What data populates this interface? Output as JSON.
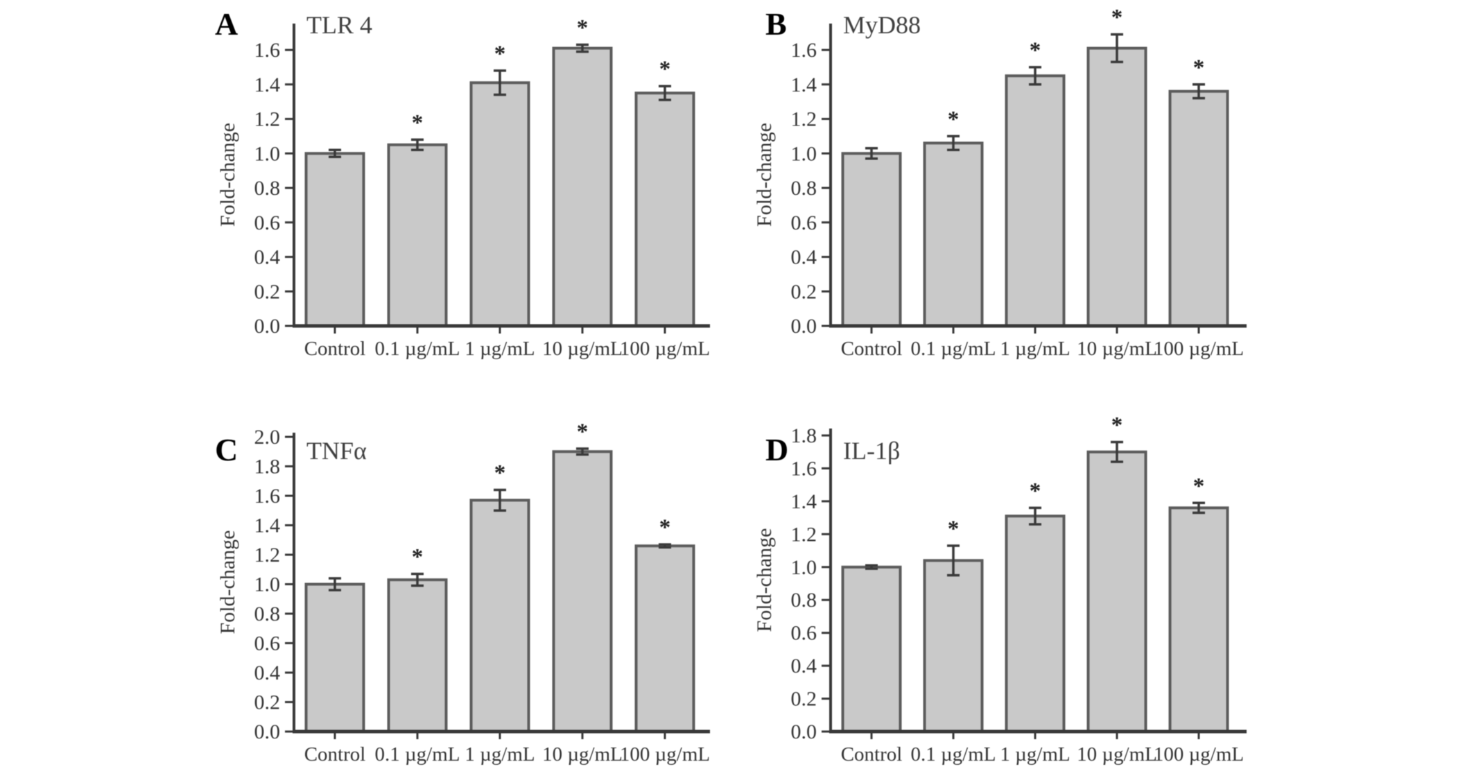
{
  "figure": {
    "sig_marker": "*",
    "colors": {
      "background": "#ffffff",
      "bar_fill": "#c9c9c9",
      "bar_stroke": "#5c5c5c",
      "axis": "#383838",
      "tick_text": "#333333",
      "title_text": "#3f3f3f",
      "letter_text": "#000000",
      "error_bar": "#3a3a3a",
      "asterisk": "#1e1e1e"
    }
  },
  "chart_data": [
    {
      "panel": "A",
      "type": "bar",
      "title": "TLR 4",
      "ylabel": "Fold-change",
      "categories": [
        "Control",
        "0.1 µg/mL",
        "1 µg/mL",
        "10 µg/mL",
        "100 µg/mL"
      ],
      "values": [
        1.0,
        1.05,
        1.41,
        1.61,
        1.35
      ],
      "errors": [
        0.02,
        0.03,
        0.07,
        0.02,
        0.04
      ],
      "significant": [
        false,
        true,
        true,
        true,
        true
      ],
      "ylim": [
        0,
        1.6
      ],
      "ytick_step": 0.2,
      "grid": false,
      "legend": null
    },
    {
      "panel": "B",
      "type": "bar",
      "title": "MyD88",
      "ylabel": "Fold-change",
      "categories": [
        "Control",
        "0.1 µg/mL",
        "1 µg/mL",
        "10 µg/mL",
        "100 µg/mL"
      ],
      "values": [
        1.0,
        1.06,
        1.45,
        1.61,
        1.36
      ],
      "errors": [
        0.03,
        0.04,
        0.05,
        0.08,
        0.04
      ],
      "significant": [
        false,
        true,
        true,
        true,
        true
      ],
      "ylim": [
        0,
        1.6
      ],
      "ytick_step": 0.2,
      "grid": false,
      "legend": null
    },
    {
      "panel": "C",
      "type": "bar",
      "title": "TNFα",
      "ylabel": "Fold-change",
      "categories": [
        "Control",
        "0.1 µg/mL",
        "1 µg/mL",
        "10 µg/mL",
        "100 µg/mL"
      ],
      "values": [
        1.0,
        1.03,
        1.57,
        1.9,
        1.26
      ],
      "errors": [
        0.04,
        0.04,
        0.07,
        0.02,
        0.01
      ],
      "significant": [
        false,
        true,
        true,
        true,
        true
      ],
      "ylim": [
        0,
        2.0
      ],
      "ytick_step": 0.2,
      "grid": false,
      "legend": null
    },
    {
      "panel": "D",
      "type": "bar",
      "title": "IL-1β",
      "ylabel": "Fold-change",
      "categories": [
        "Control",
        "0.1 µg/mL",
        "1 µg/mL",
        "10 µg/mL",
        "100 µg/mL"
      ],
      "values": [
        1.0,
        1.04,
        1.31,
        1.7,
        1.36
      ],
      "errors": [
        0.01,
        0.09,
        0.05,
        0.06,
        0.03
      ],
      "significant": [
        false,
        true,
        true,
        true,
        true
      ],
      "ylim": [
        0,
        1.8
      ],
      "ytick_step": 0.2,
      "grid": false,
      "legend": null
    }
  ]
}
